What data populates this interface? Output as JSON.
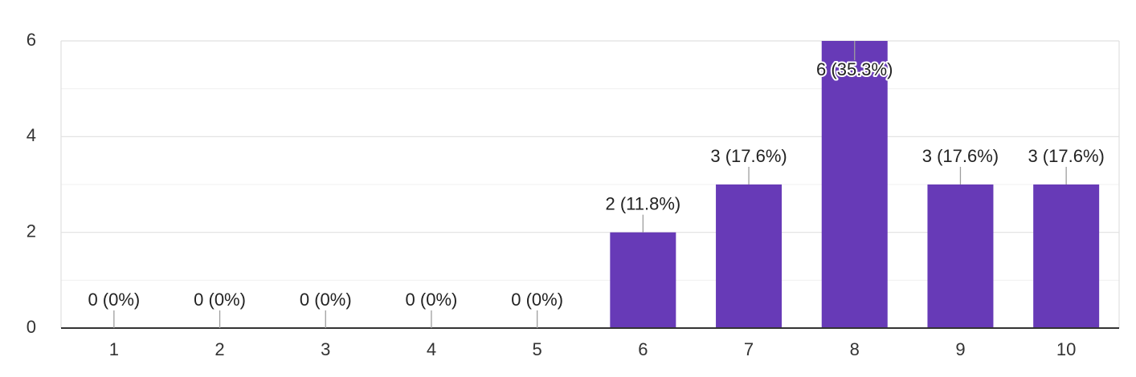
{
  "chart_data": {
    "type": "bar",
    "categories": [
      "1",
      "2",
      "3",
      "4",
      "5",
      "6",
      "7",
      "8",
      "9",
      "10"
    ],
    "values": [
      0,
      0,
      0,
      0,
      0,
      2,
      3,
      6,
      3,
      3
    ],
    "data_labels": [
      "0 (0%)",
      "0 (0%)",
      "0 (0%)",
      "0 (0%)",
      "0 (0%)",
      "2 (11.8%)",
      "3 (17.6%)",
      "6 (35.3%)",
      "3 (17.6%)",
      "3 (17.6%)"
    ],
    "y_ticks": [
      0,
      2,
      4,
      6
    ],
    "ylim": [
      0,
      6
    ],
    "grid": true,
    "bar_color": "#673ab7",
    "title": "",
    "xlabel": "",
    "ylabel": ""
  }
}
